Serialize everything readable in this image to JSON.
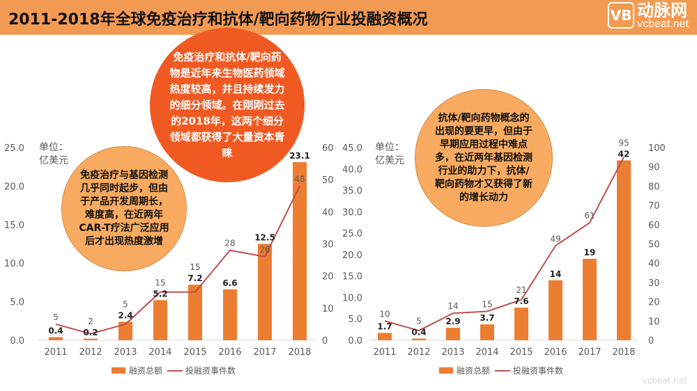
{
  "header": {
    "title": "2011-2018年全球免疫治疗和抗体/靶向药物行业投融资概况"
  },
  "logo": {
    "mark": "VB",
    "cn": "动脉网",
    "en": "vcbeat.net"
  },
  "colors": {
    "bar": "#ed7d31",
    "line": "#c0504d",
    "header": "#f39a52",
    "bubble_dark": "#f05a22",
    "bubble_light": "#f8aa60"
  },
  "bubbles": {
    "left": "免疫治疗与基因检测几乎同时起步，但由于产品开发周期长，难度高，在近两年CAR-T疗法广泛应用后才出现热度激增",
    "center": "免疫治疗和抗体/靶向药物是近年来生物医药领域热度较高，并且持续发力的细分领域。在刚刚过去的2018年，这两个细分领域都获得了大量资本青睐",
    "right": "抗体/靶向药物概念的出现的要更早，但由于早期应用过程中难点多，在近两年基因检测行业的助力下，抗体/靶向药物才又获得了新的增长动力"
  },
  "chart_data": [
    {
      "type": "bar+line",
      "unit_label": "单位：亿美元",
      "categories": [
        "2011",
        "2012",
        "2013",
        "2014",
        "2015",
        "2016",
        "2017",
        "2018"
      ],
      "series": [
        {
          "name": "融资总额",
          "type": "bar",
          "axis": "left",
          "values": [
            0.4,
            0.2,
            2.4,
            5.2,
            7.2,
            6.6,
            12.5,
            23.1
          ]
        },
        {
          "name": "投融资事件数",
          "type": "line",
          "axis": "right",
          "values": [
            5,
            2,
            5,
            15,
            15,
            28,
            26,
            48
          ]
        }
      ],
      "ylim": [
        0,
        25
      ],
      "yticks": [
        "0.0",
        "5.0",
        "10.0",
        "15.0",
        "20.0",
        "25.0"
      ],
      "y2lim": [
        0,
        60
      ],
      "y2ticks": [
        "0",
        "10",
        "20",
        "30",
        "40",
        "50",
        "60"
      ],
      "legend": "bottom",
      "grid": false
    },
    {
      "type": "bar+line",
      "unit_label": "单位：亿美元",
      "categories": [
        "2011",
        "2012",
        "2013",
        "2014",
        "2015",
        "2016",
        "2017",
        "2018"
      ],
      "series": [
        {
          "name": "融资总额",
          "type": "bar",
          "axis": "left",
          "values": [
            1.7,
            0.4,
            2.9,
            3.7,
            7.6,
            14,
            19,
            42
          ]
        },
        {
          "name": "投融资事件数",
          "type": "line",
          "axis": "right",
          "values": [
            10,
            5,
            14,
            15,
            21,
            49,
            61,
            95
          ]
        }
      ],
      "ylim": [
        0,
        45
      ],
      "yticks": [
        "0.0",
        "5.0",
        "10.0",
        "15.0",
        "20.0",
        "25.0",
        "30.0",
        "35.0",
        "40.0",
        "45.0"
      ],
      "y2lim": [
        0,
        100
      ],
      "y2ticks": [
        "0",
        "10",
        "20",
        "30",
        "40",
        "50",
        "60",
        "70",
        "80",
        "90",
        "100"
      ],
      "legend": "bottom",
      "grid": false
    }
  ]
}
